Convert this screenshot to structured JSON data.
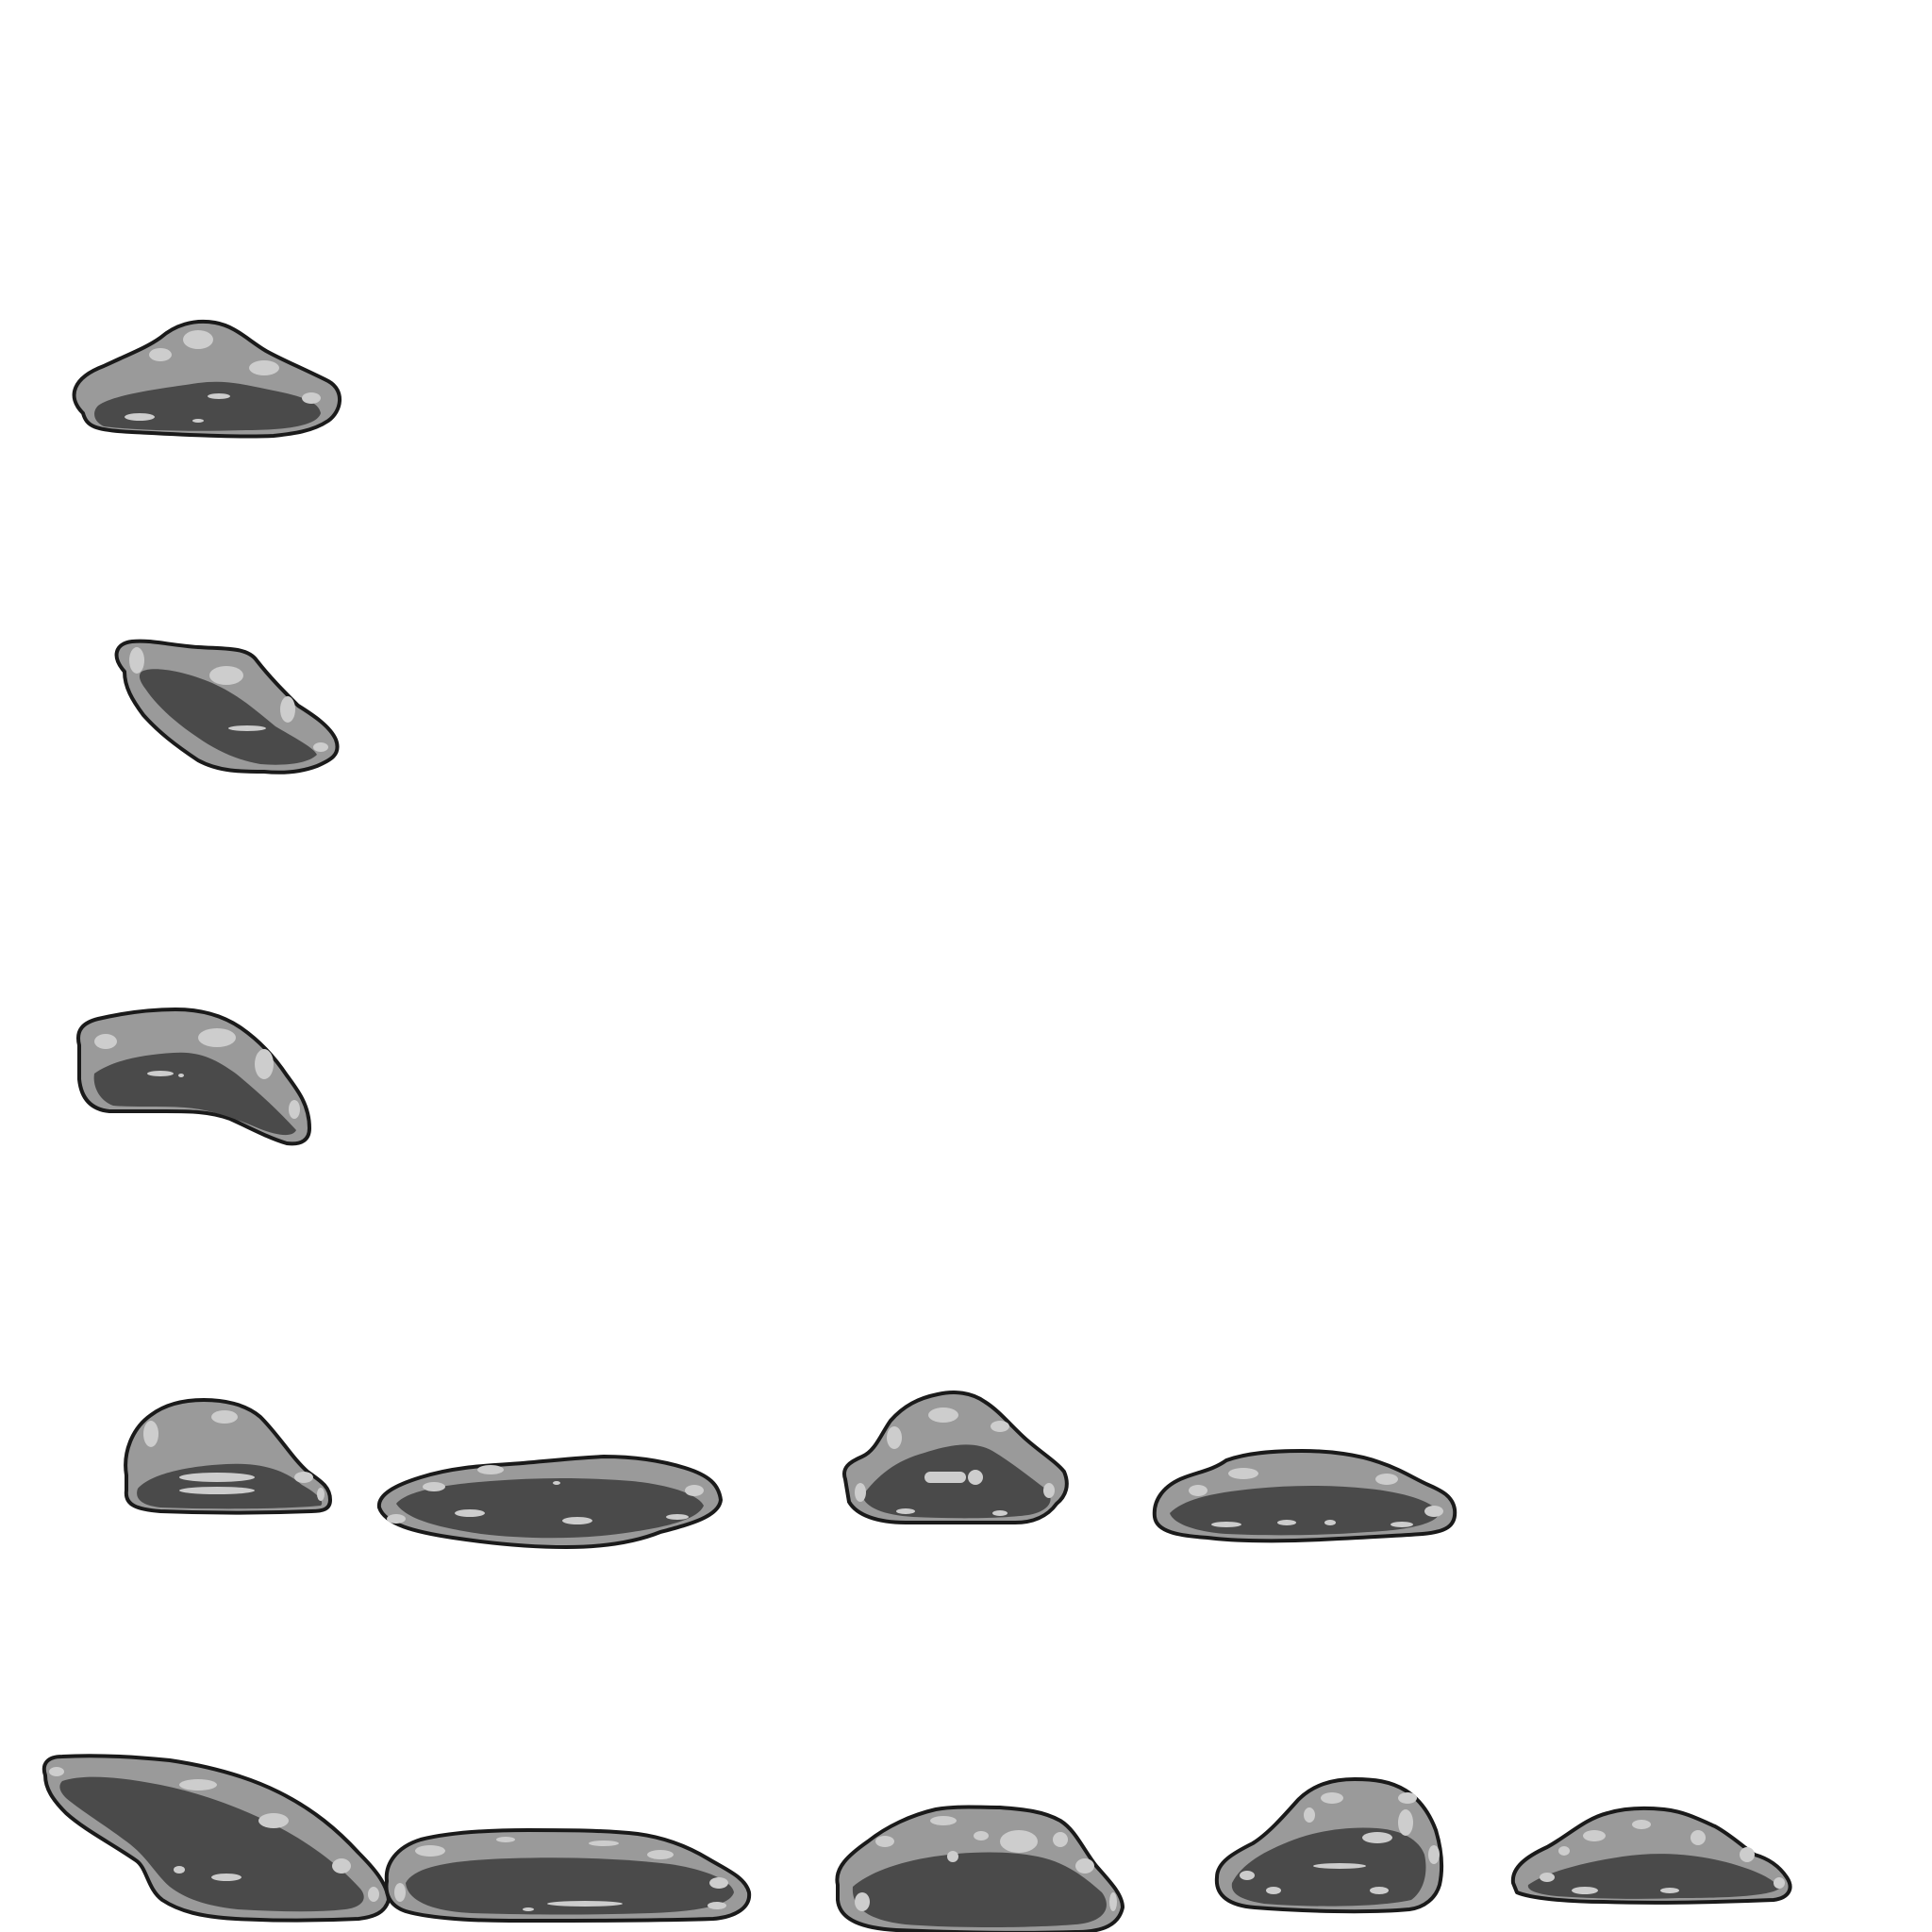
{
  "sprite_sheet": {
    "background": "#ffffff",
    "palette": {
      "outline": "#1a1a1a",
      "mid": "#9a9a9a",
      "dark": "#4a4a4a",
      "highlight": "#cdcdcd"
    },
    "rows": [
      {
        "row": 1,
        "sprites": [
          "rock-1"
        ]
      },
      {
        "row": 2,
        "sprites": [
          "rock-2"
        ]
      },
      {
        "row": 3,
        "sprites": [
          "rock-3"
        ]
      },
      {
        "row": 4,
        "sprites": [
          "rock-4",
          "rock-5",
          "rock-6",
          "rock-7"
        ]
      },
      {
        "row": 5,
        "sprites": [
          "rock-8",
          "rock-9",
          "rock-10",
          "rock-11",
          "rock-12"
        ]
      }
    ]
  }
}
